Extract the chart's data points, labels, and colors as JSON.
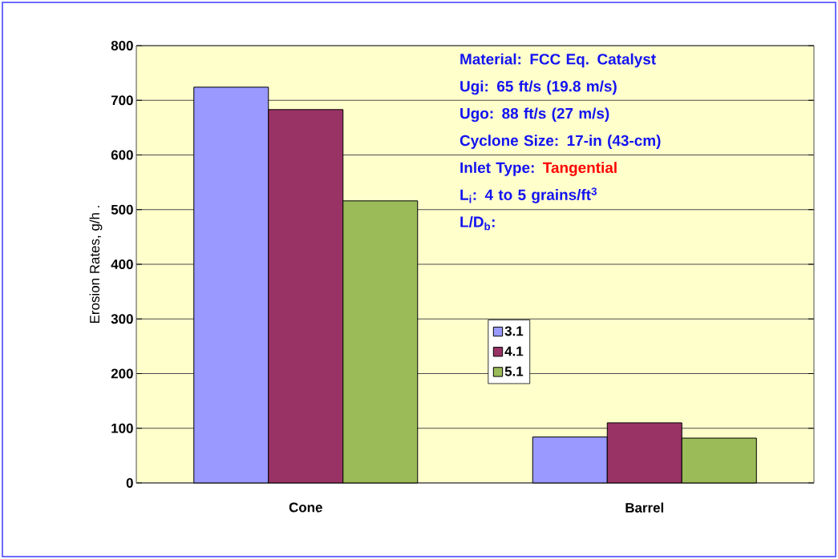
{
  "chart_data": {
    "type": "bar",
    "categories": [
      "Cone",
      "Barrel"
    ],
    "series": [
      {
        "name": "3.1",
        "color": "#9999ff",
        "values": [
          724,
          84
        ]
      },
      {
        "name": "4.1",
        "color": "#993366",
        "values": [
          683,
          110
        ]
      },
      {
        "name": "5.1",
        "color": "#9bbb59",
        "values": [
          516,
          82
        ]
      }
    ],
    "ylabel": "Erosion Rates, g/h  .",
    "ylim": [
      0,
      800
    ],
    "yticks": [
      0,
      100,
      200,
      300,
      400,
      500,
      600,
      700,
      800
    ],
    "grid": "y",
    "legend": "center",
    "annotations": [
      "Material: FCC Eq. Catalyst",
      "Ugi: 65 ft/s (19.8 m/s)",
      "Ugo: 88 ft/s (27 m/s)",
      "Cyclone Size: 17-in (43-cm)",
      "Inlet Type:",
      "Tangential",
      "L$_{i}$: 4 to 5 grains/ft$^{3}$",
      "L/D$_{b}$:"
    ]
  }
}
